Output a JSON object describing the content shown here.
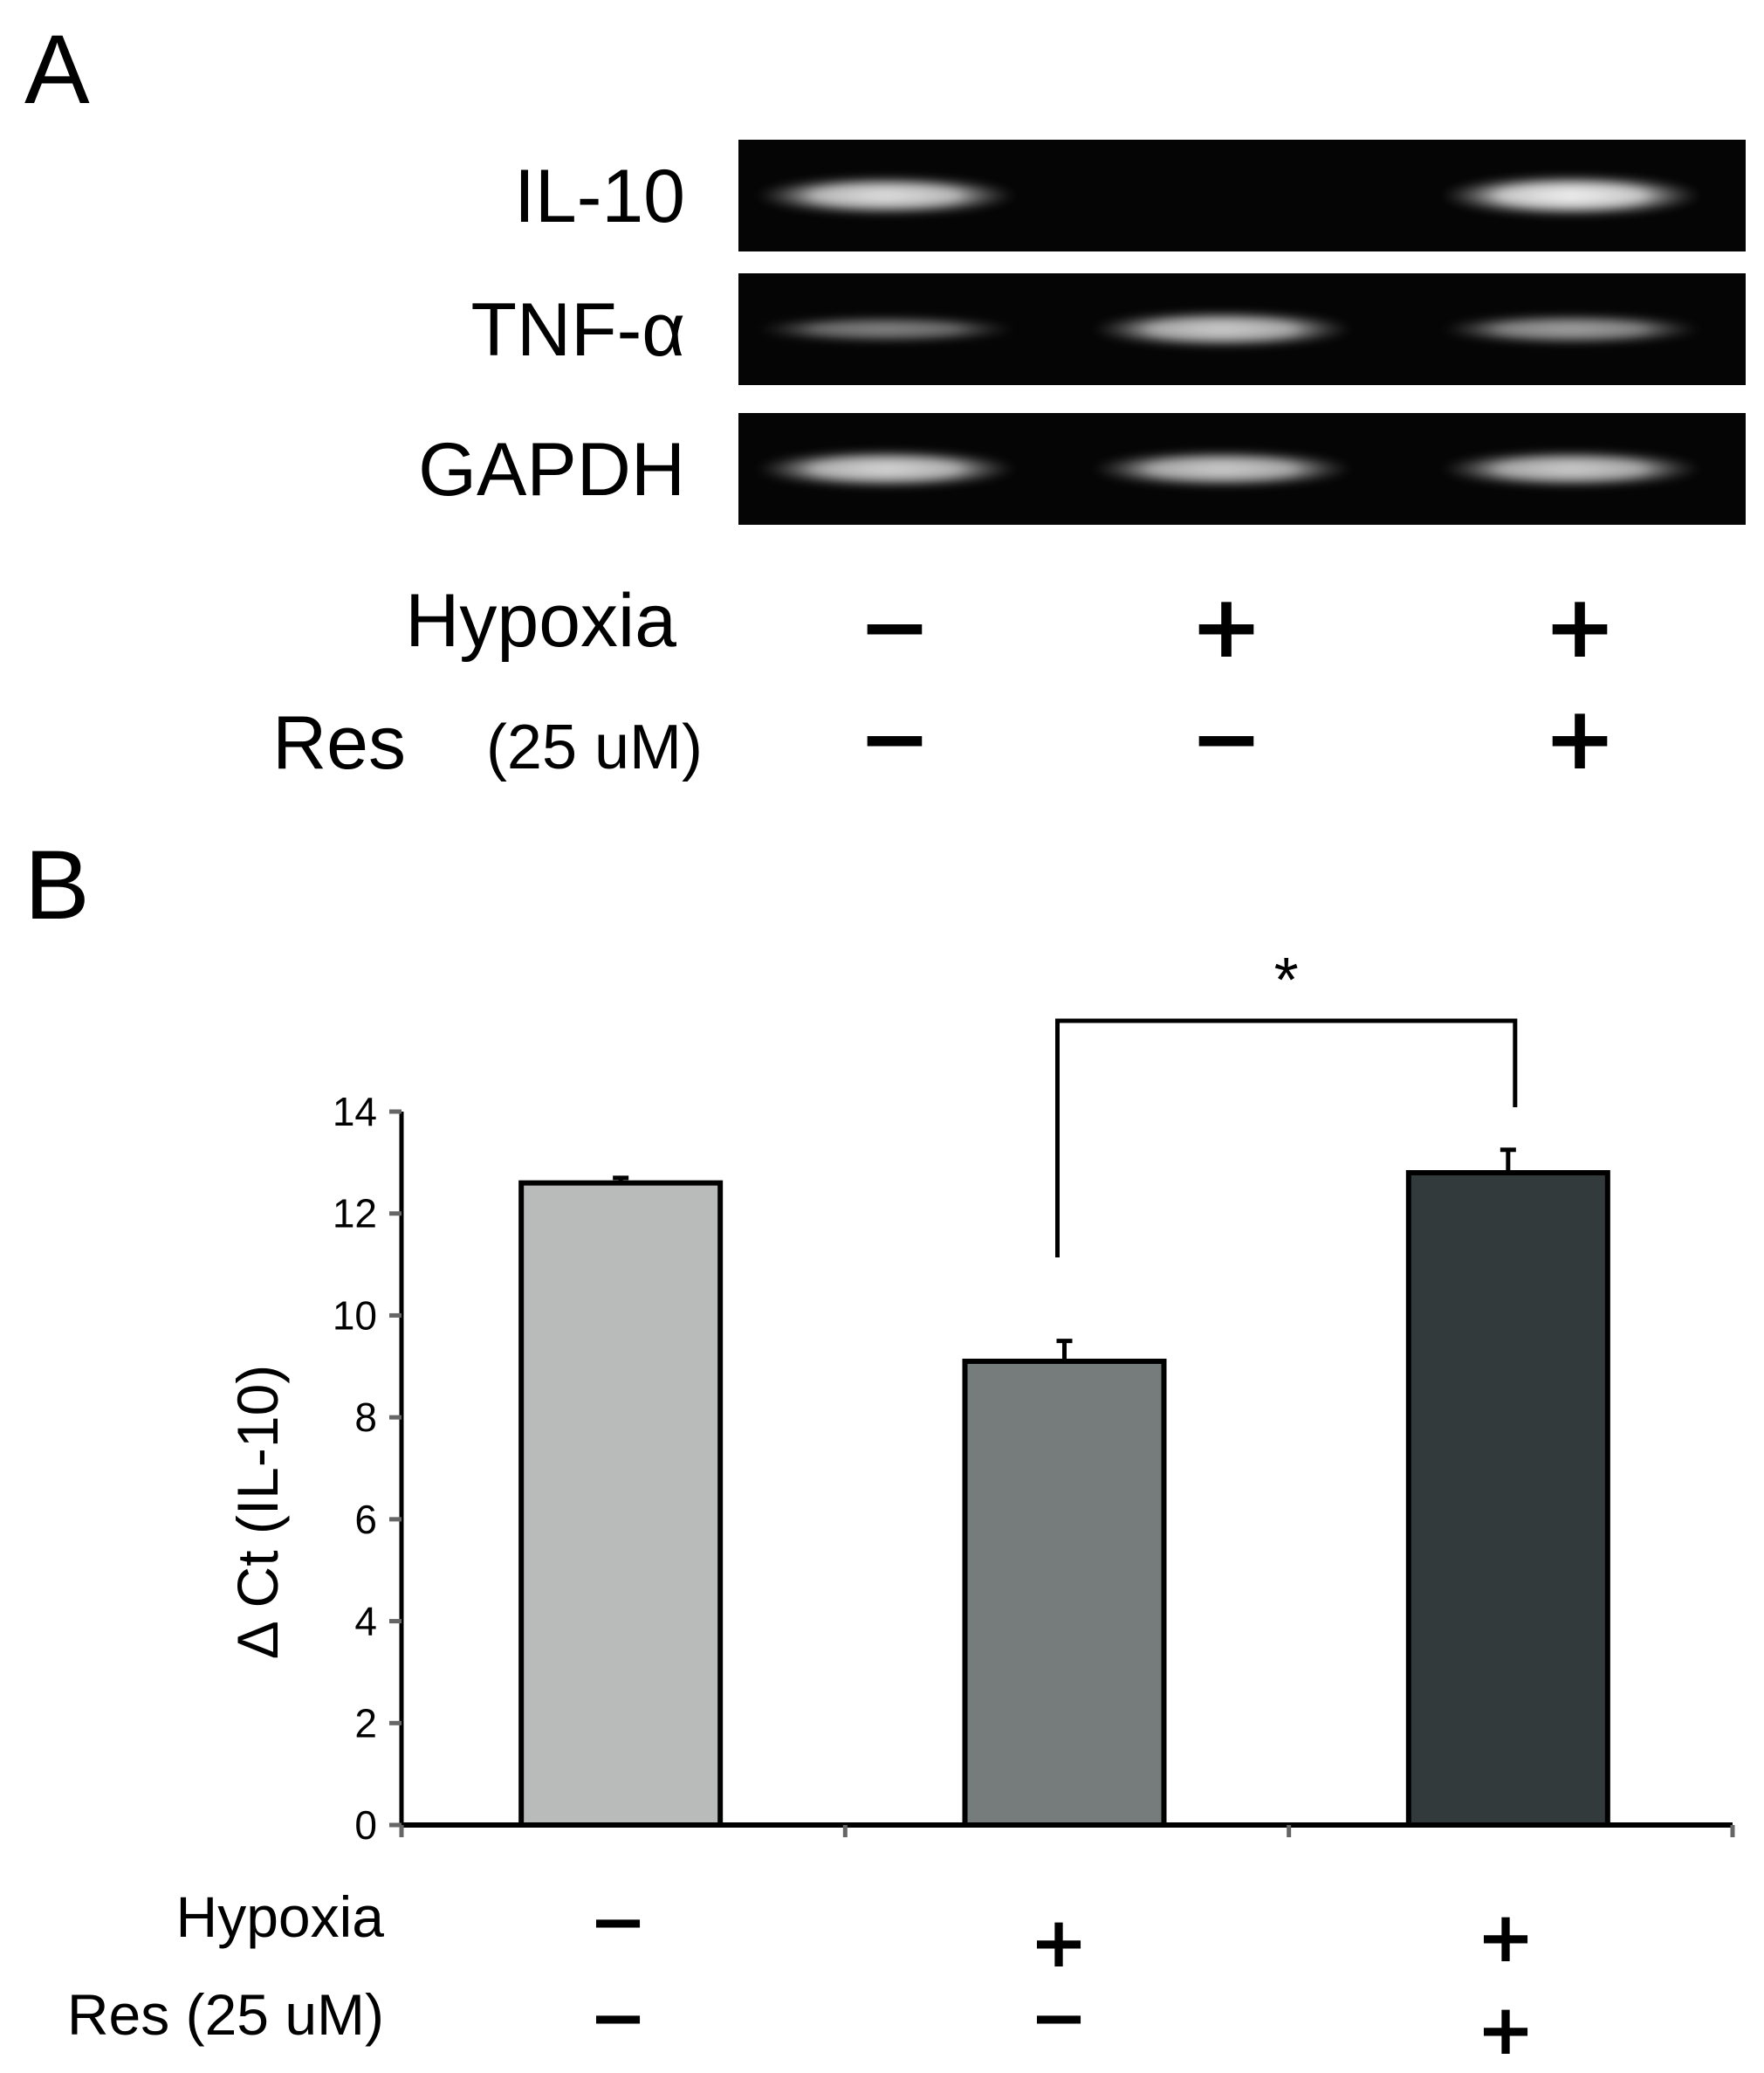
{
  "panel_a": {
    "letter": "A",
    "gel_rows": [
      {
        "label": "IL-10",
        "band_intensity": [
          0.85,
          0.0,
          0.95
        ]
      },
      {
        "label": "TNF-α",
        "band_intensity": [
          0.35,
          0.75,
          0.5
        ]
      },
      {
        "label": "GAPDH",
        "band_intensity": [
          0.8,
          0.75,
          0.75
        ]
      }
    ],
    "conditions": [
      {
        "label": "Hypoxia",
        "sub": "",
        "signs": [
          "−",
          "+",
          "+"
        ]
      },
      {
        "label": "Res",
        "sub": "(25 uM)",
        "signs": [
          "−",
          "−",
          "+"
        ]
      }
    ]
  },
  "panel_b": {
    "letter": "B",
    "conditions": [
      {
        "label": "Hypoxia",
        "signs": [
          "−",
          "+",
          "+"
        ]
      },
      {
        "label": "Res (25 uM)",
        "signs": [
          "−",
          "−",
          "+"
        ]
      }
    ]
  },
  "chart_data": {
    "type": "bar",
    "title": "",
    "xlabel": "",
    "ylabel": "Δ Ct  (IL-10)",
    "ylim": [
      0,
      14
    ],
    "yticks": [
      0,
      2,
      4,
      6,
      8,
      10,
      12,
      14
    ],
    "grid": false,
    "categories": [
      "",
      "",
      ""
    ],
    "values": [
      12.6,
      9.1,
      12.8
    ],
    "errors": [
      0.1,
      0.4,
      0.45
    ],
    "colors": [
      "#b9bbba",
      "#767b7c",
      "#323a3c"
    ],
    "significance": {
      "from": 1,
      "to": 2,
      "label": "*"
    }
  }
}
